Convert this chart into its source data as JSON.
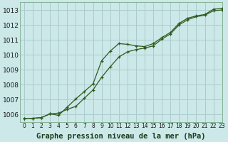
{
  "title": "Graphe pression niveau de la mer (hPa)",
  "background_color": "#cce8e8",
  "grid_color": "#aacccc",
  "line_color": "#2d5a1e",
  "marker_color": "#2d5a1e",
  "xlim": [
    -0.5,
    23
  ],
  "ylim": [
    1005.5,
    1013.5
  ],
  "yticks": [
    1006,
    1007,
    1008,
    1009,
    1010,
    1011,
    1012,
    1013
  ],
  "xticks": [
    0,
    1,
    2,
    3,
    4,
    5,
    6,
    7,
    8,
    9,
    10,
    11,
    12,
    13,
    14,
    15,
    16,
    17,
    18,
    19,
    20,
    21,
    22,
    23
  ],
  "line1_x": [
    0,
    1,
    2,
    3,
    4,
    5,
    6,
    7,
    8,
    9,
    10,
    11,
    12,
    13,
    14,
    15,
    16,
    17,
    18,
    19,
    20,
    21,
    22,
    23
  ],
  "line1_y": [
    1005.75,
    1005.75,
    1005.8,
    1006.05,
    1005.95,
    1006.5,
    1007.05,
    1007.55,
    1008.05,
    1009.6,
    1010.25,
    1010.75,
    1010.7,
    1010.6,
    1010.55,
    1010.75,
    1011.15,
    1011.5,
    1012.1,
    1012.45,
    1012.6,
    1012.7,
    1013.05,
    1013.1
  ],
  "line2_x": [
    0,
    1,
    2,
    3,
    4,
    5,
    6,
    7,
    8,
    9,
    10,
    11,
    12,
    13,
    14,
    15,
    16,
    17,
    18,
    19,
    20,
    21,
    22,
    23
  ],
  "line2_y": [
    1005.75,
    1005.75,
    1005.8,
    1006.05,
    1006.1,
    1006.35,
    1006.55,
    1007.1,
    1007.65,
    1008.5,
    1009.2,
    1009.85,
    1010.2,
    1010.35,
    1010.45,
    1010.6,
    1011.05,
    1011.4,
    1012.0,
    1012.35,
    1012.55,
    1012.65,
    1012.95,
    1013.0
  ],
  "xlabel_fontsize": 6.5,
  "ytick_fontsize": 6.5,
  "xtick_fontsize": 5.5,
  "title_fontsize": 7.5
}
